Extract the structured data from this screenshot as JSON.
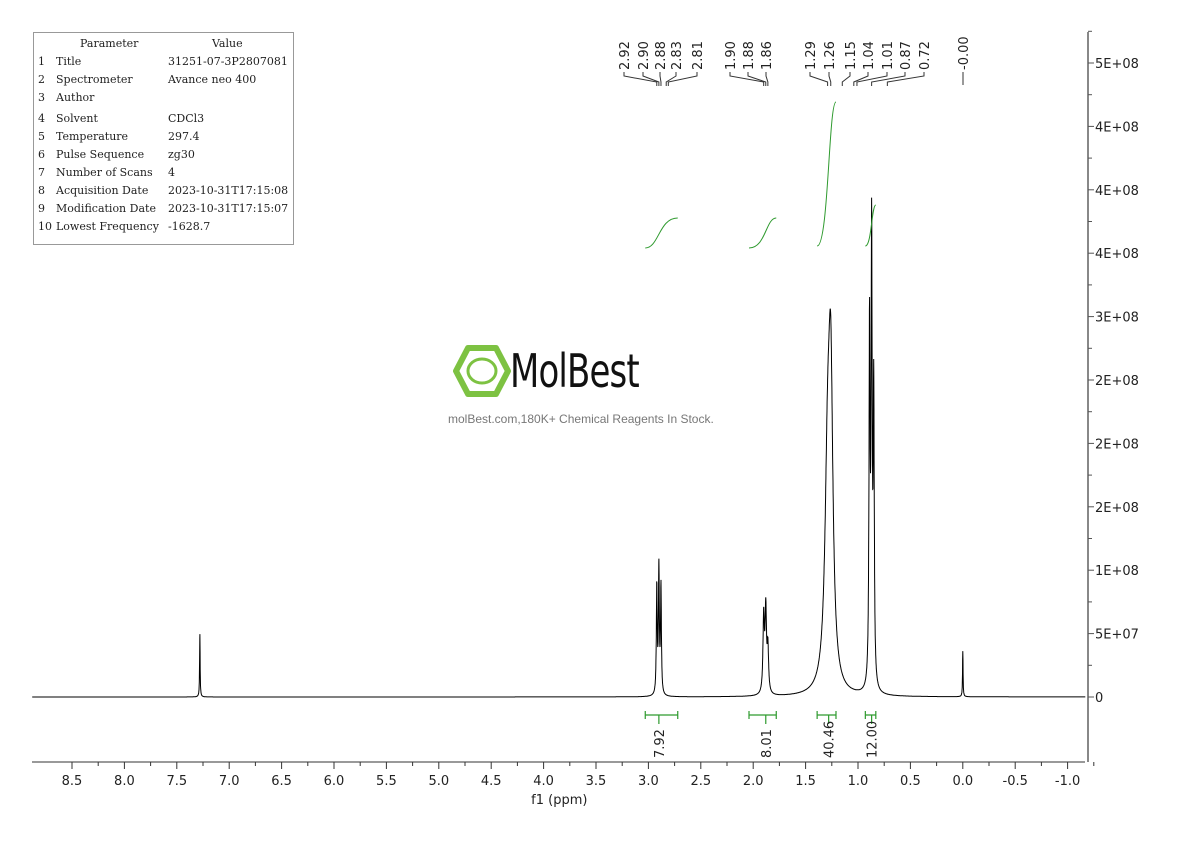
{
  "parameters": {
    "header_param": "Parameter",
    "header_value": "Value",
    "rows": [
      {
        "num": "1",
        "key": "Title",
        "value": "31251-07-3P2807081"
      },
      {
        "num": "2",
        "key": "Spectrometer",
        "value": "Avance neo 400"
      },
      {
        "num": "3",
        "key": "Author",
        "value": ""
      },
      {
        "num": "4",
        "key": "Solvent",
        "value": "CDCl3"
      },
      {
        "num": "5",
        "key": "Temperature",
        "value": "297.4"
      },
      {
        "num": "6",
        "key": "Pulse Sequence",
        "value": "zg30"
      },
      {
        "num": "7",
        "key": "Number of Scans",
        "value": "4"
      },
      {
        "num": "8",
        "key": "Acquisition Date",
        "value": "2023-10-31T17:15:08"
      },
      {
        "num": "9",
        "key": "Modification Date",
        "value": "2023-10-31T17:15:07"
      },
      {
        "num": "10",
        "key": "Lowest Frequency",
        "value": "-1628.7"
      }
    ]
  },
  "watermark": {
    "brand": "MolBest",
    "tagline": "molBest.com,180K+ Chemical Reagents In Stock.",
    "color": "#7dc242"
  },
  "chart_data": {
    "type": "line",
    "xlabel": "f1 (ppm)",
    "ylabel": "",
    "xlim": [
      8.88,
      -1.17
    ],
    "ylim": [
      -55000000.0,
      530000000.0
    ],
    "x_ticks": [
      "8.5",
      "8.0",
      "7.5",
      "7.0",
      "6.5",
      "6.0",
      "5.5",
      "5.0",
      "4.5",
      "4.0",
      "3.5",
      "3.0",
      "2.5",
      "2.0",
      "1.5",
      "1.0",
      "0.5",
      "0.0",
      "-0.5",
      "-1.0"
    ],
    "x_tick_values": [
      8.5,
      8.0,
      7.5,
      7.0,
      6.5,
      6.0,
      5.5,
      5.0,
      4.5,
      4.0,
      3.5,
      3.0,
      2.5,
      2.0,
      1.5,
      1.0,
      0.5,
      0.0,
      -0.5,
      -1.0
    ],
    "y_ticks": [
      "0",
      "5E+07",
      "1E+08",
      "2E+08",
      "2E+08",
      "2E+08",
      "3E+08",
      "4E+08",
      "4E+08",
      "4E+08",
      "5E+08"
    ],
    "y_tick_values": [
      0,
      50000000.0,
      100000000.0,
      150000000.0,
      200000000.0,
      250000000.0,
      300000000.0,
      350000000.0,
      400000000.0,
      450000000.0,
      500000000.0
    ],
    "y_axis_side": "right",
    "line_color": "#000000",
    "integral_color": "#2e9a2e",
    "peaks": [
      {
        "ppm": 7.28,
        "intensity": 51000000.0,
        "width": 0.003
      },
      {
        "ppm": 2.92,
        "intensity": 85000000.0,
        "width": 0.005
      },
      {
        "ppm": 2.9,
        "intensity": 100000000.0,
        "width": 0.005
      },
      {
        "ppm": 2.88,
        "intensity": 85000000.0,
        "width": 0.005
      },
      {
        "ppm": 1.9,
        "intensity": 60000000.0,
        "width": 0.008
      },
      {
        "ppm": 1.88,
        "intensity": 65000000.0,
        "width": 0.008
      },
      {
        "ppm": 1.86,
        "intensity": 35000000.0,
        "width": 0.008
      },
      {
        "ppm": 1.29,
        "intensity": 160000000.0,
        "width": 0.03
      },
      {
        "ppm": 1.26,
        "intensity": 220000000.0,
        "width": 0.025
      },
      {
        "ppm": 0.89,
        "intensity": 280000000.0,
        "width": 0.006
      },
      {
        "ppm": 0.87,
        "intensity": 350000000.0,
        "width": 0.006
      },
      {
        "ppm": 0.85,
        "intensity": 230000000.0,
        "width": 0.006
      },
      {
        "ppm": 0.0,
        "intensity": 36000000.0,
        "width": 0.003
      }
    ],
    "peak_labels": [
      "7.28",
      "2.92",
      "2.90",
      "2.88",
      "2.83",
      "2.81",
      "1.90",
      "1.88",
      "1.86",
      "1.29",
      "1.26",
      "1.15",
      "1.04",
      "1.01",
      "0.87",
      "0.72",
      "-0.00"
    ],
    "integrals": [
      {
        "from": 3.03,
        "to": 2.72,
        "value": "7.92",
        "center": 2.9
      },
      {
        "from": 2.04,
        "to": 1.78,
        "value": "8.01",
        "center": 1.88
      },
      {
        "from": 1.39,
        "to": 1.21,
        "value": "40.46",
        "center": 1.28
      },
      {
        "from": 0.93,
        "to": 0.83,
        "value": "12.00",
        "center": 0.87
      }
    ]
  }
}
